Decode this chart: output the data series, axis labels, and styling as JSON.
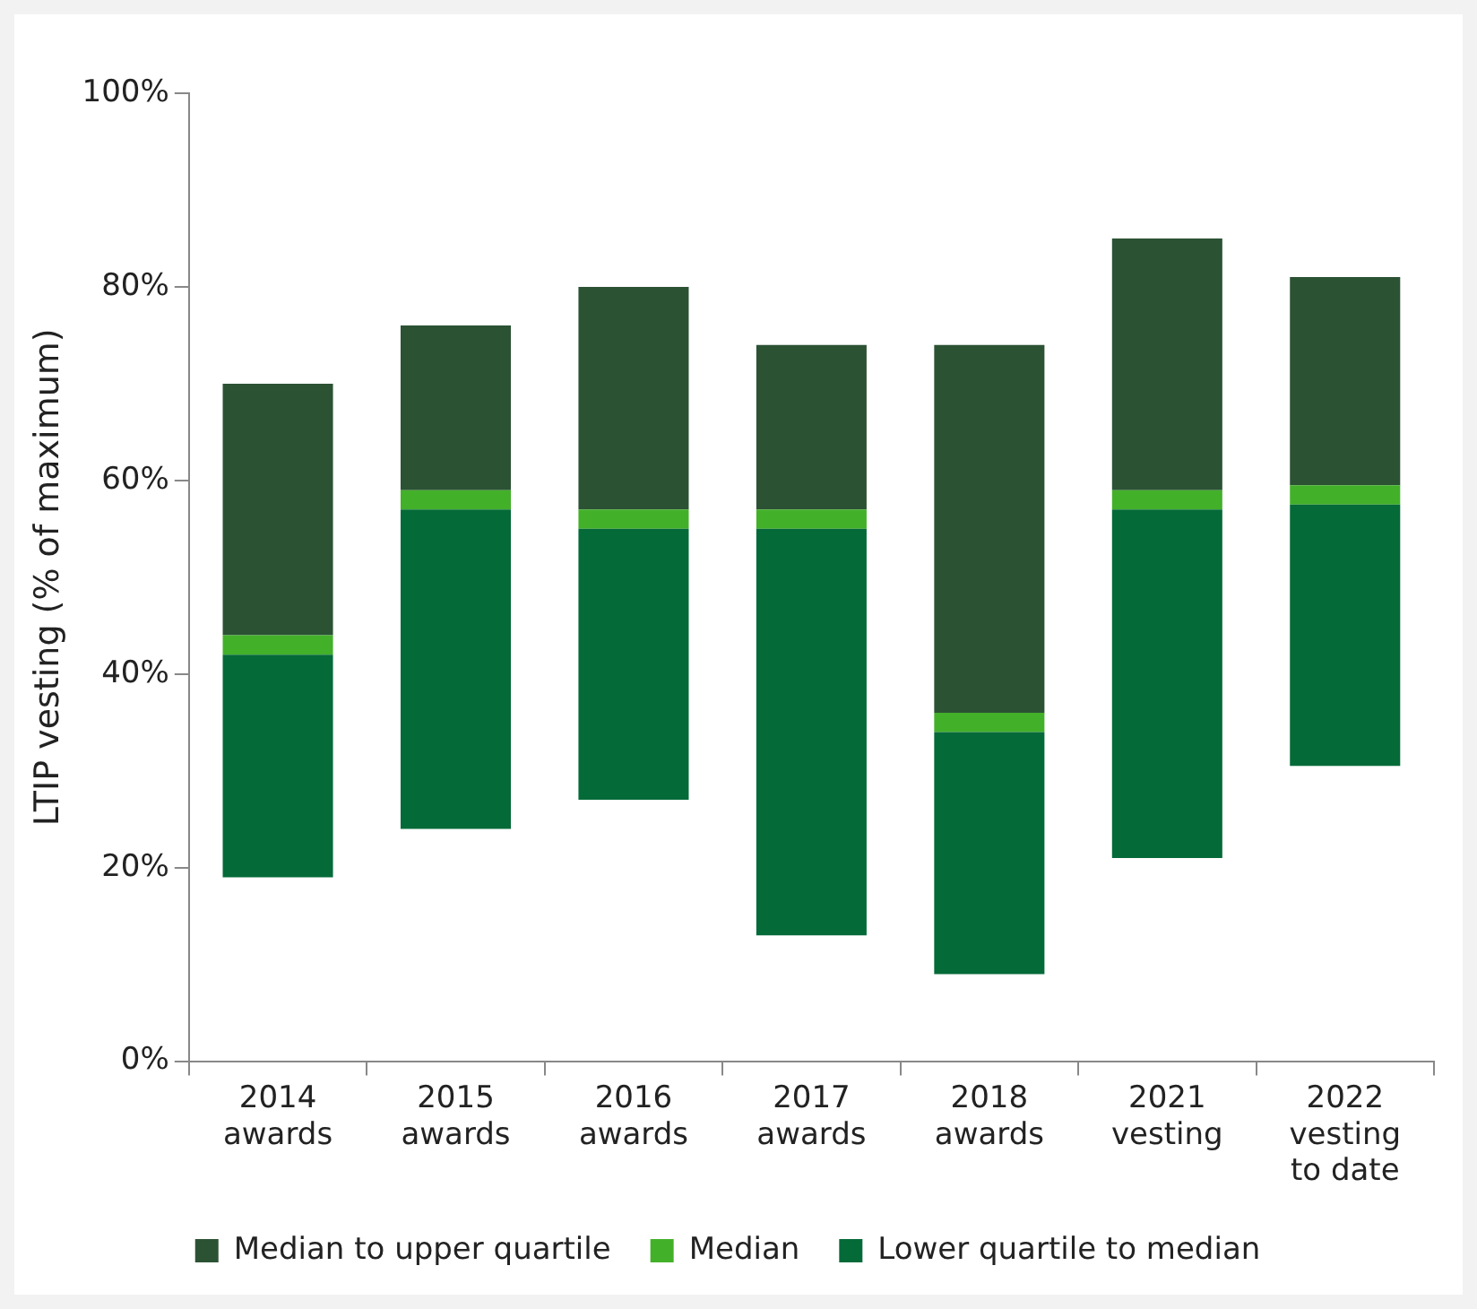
{
  "chart_data": {
    "type": "bar",
    "ylabel": "LTIP vesting (% of maximum)",
    "categories": [
      "2014 awards",
      "2015 awards",
      "2016 awards",
      "2017 awards",
      "2018 awards",
      "2021 vesting",
      "2022 vesting to date"
    ],
    "series": [
      {
        "name": "Lower quartile to median",
        "color": "#046a38",
        "base": [
          19,
          24,
          27,
          13,
          9,
          21,
          30.5
        ],
        "values": [
          23,
          33,
          28,
          42,
          25,
          36,
          27
        ]
      },
      {
        "name": "Median",
        "color": "#43b02a",
        "base": [
          42,
          57,
          55,
          55,
          34,
          57,
          57.5
        ],
        "values": [
          2,
          2,
          2,
          2,
          2,
          2,
          2
        ]
      },
      {
        "name": "Median to upper quartile",
        "color": "#2c5234",
        "base": [
          44,
          59,
          57,
          57,
          36,
          59,
          59.5
        ],
        "values": [
          26,
          17,
          23,
          17,
          38,
          26,
          21.5
        ]
      }
    ],
    "ylim": [
      0,
      100
    ],
    "yticks": [
      {
        "value": 0,
        "label": "0%"
      },
      {
        "value": 20,
        "label": "20%"
      },
      {
        "value": 40,
        "label": "40%"
      },
      {
        "value": 60,
        "label": "60%"
      },
      {
        "value": 80,
        "label": "80%"
      },
      {
        "value": 100,
        "label": "100%"
      }
    ],
    "grid": false,
    "legend": "bottom"
  }
}
